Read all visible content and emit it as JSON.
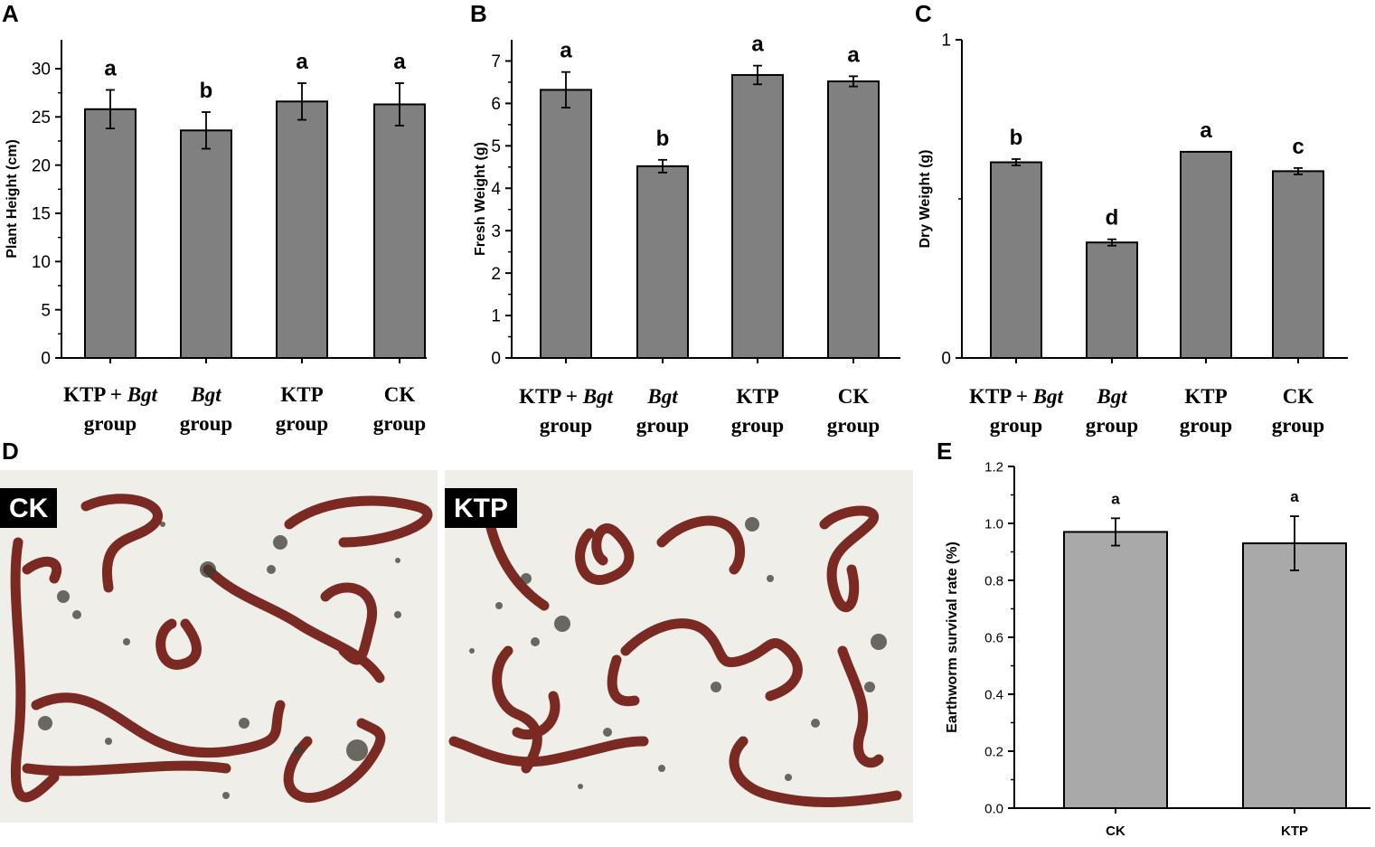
{
  "panels": {
    "A": "A",
    "B": "B",
    "C": "C",
    "D": "D",
    "E": "E"
  },
  "photos": {
    "left_label": "CK",
    "right_label": "KTP"
  },
  "chart_data": [
    {
      "id": "A",
      "type": "bar",
      "categories": [
        {
          "line1": "KTP + ",
          "line1_italic": "Bgt",
          "line2": "group"
        },
        {
          "line1": "",
          "line1_italic": "Bgt",
          "line2": "group"
        },
        {
          "line1": "KTP",
          "line1_italic": "",
          "line2": "group"
        },
        {
          "line1": "CK",
          "line1_italic": "",
          "line2": "group"
        }
      ],
      "values": [
        25.8,
        23.6,
        26.6,
        26.3
      ],
      "errors": [
        2.0,
        1.9,
        1.9,
        2.2
      ],
      "letters": [
        "a",
        "b",
        "a",
        "a"
      ],
      "ylabel": "Plant Height (cm)",
      "ylim": [
        0,
        33
      ],
      "yticks": [
        0,
        5,
        10,
        15,
        20,
        25,
        30
      ],
      "bar_color": "#808080"
    },
    {
      "id": "B",
      "type": "bar",
      "categories": [
        {
          "line1": "KTP + ",
          "line1_italic": "Bgt",
          "line2": "group"
        },
        {
          "line1": "",
          "line1_italic": "Bgt",
          "line2": "group"
        },
        {
          "line1": "KTP",
          "line1_italic": "",
          "line2": "group"
        },
        {
          "line1": "CK",
          "line1_italic": "",
          "line2": "group"
        }
      ],
      "values": [
        6.32,
        4.52,
        6.67,
        6.52
      ],
      "errors": [
        0.42,
        0.15,
        0.22,
        0.12
      ],
      "letters": [
        "a",
        "b",
        "a",
        "a"
      ],
      "ylabel": "Fresh Weight (g)",
      "ylim": [
        0,
        7.5
      ],
      "yticks": [
        0,
        1,
        2,
        3,
        4,
        5,
        6,
        7
      ],
      "bar_color": "#808080"
    },
    {
      "id": "C",
      "type": "bar",
      "categories": [
        {
          "line1": "KTP + ",
          "line1_italic": "Bgt",
          "line2": "group"
        },
        {
          "line1": "",
          "line1_italic": "Bgt",
          "line2": "group"
        },
        {
          "line1": "KTP",
          "line1_italic": "",
          "line2": "group"
        },
        {
          "line1": "CK",
          "line1_italic": "",
          "line2": "group"
        }
      ],
      "values": [
        0.615,
        0.363,
        0.648,
        0.587
      ],
      "errors": [
        0.01,
        0.01,
        0.0,
        0.01
      ],
      "letters": [
        "b",
        "d",
        "a",
        "c"
      ],
      "ylabel": "Dry Weight (g)",
      "ylim": [
        0,
        1.0
      ],
      "yticks": [
        0,
        1
      ],
      "bar_color": "#808080"
    },
    {
      "id": "E",
      "type": "bar",
      "categories": [
        "CK",
        "KTP"
      ],
      "values": [
        0.97,
        0.93
      ],
      "errors": [
        0.048,
        0.095
      ],
      "letters": [
        "a",
        "a"
      ],
      "ylabel": "Earthworm survival rate (%)",
      "ylim": [
        0,
        1.2
      ],
      "yticks": [
        "0.0",
        "0.2",
        "0.4",
        "0.6",
        "0.8",
        "1.0",
        "1.2"
      ],
      "bar_color": "#a9a9a9"
    }
  ]
}
